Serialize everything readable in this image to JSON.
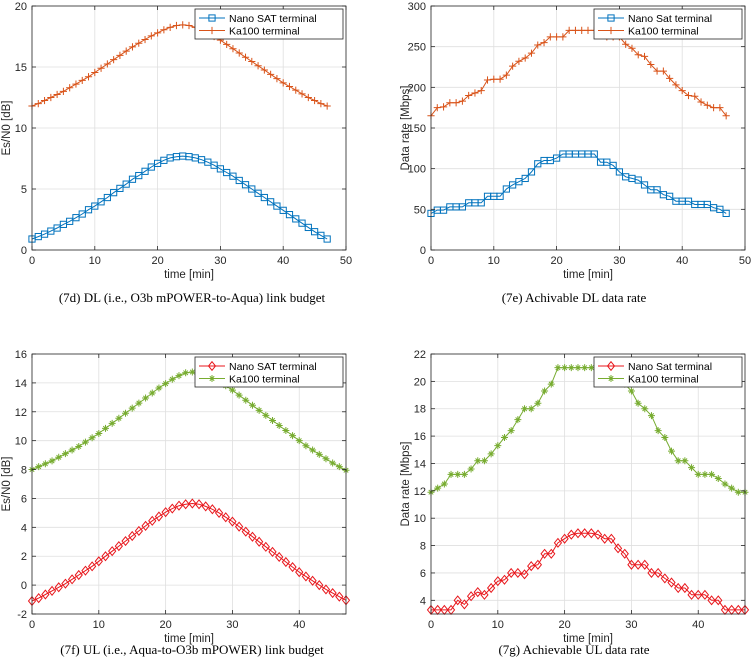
{
  "chart_data": [
    {
      "type": "line",
      "caption": "(7d) DL (i.e., O3b mPOWER-to-Aqua) link budget",
      "xlabel": "time [min]",
      "ylabel": "Es/N0 [dB]",
      "xlim": [
        0,
        50
      ],
      "ylim": [
        0,
        20
      ],
      "xticks": [
        0,
        10,
        20,
        30,
        40,
        50
      ],
      "yticks": [
        0,
        5,
        10,
        15,
        20
      ],
      "legend": "top-right",
      "x": [
        0,
        1,
        2,
        3,
        4,
        5,
        6,
        7,
        8,
        9,
        10,
        11,
        12,
        13,
        14,
        15,
        16,
        17,
        18,
        19,
        20,
        21,
        22,
        23,
        24,
        25,
        26,
        27,
        28,
        29,
        30,
        31,
        32,
        33,
        34,
        35,
        36,
        37,
        38,
        39,
        40,
        41,
        42,
        43,
        44,
        45,
        46,
        47
      ],
      "series": [
        {
          "name": "Nano SAT terminal",
          "color": "#0072BD",
          "marker": "square",
          "values": [
            0.9,
            1.1,
            1.3,
            1.55,
            1.8,
            2.1,
            2.35,
            2.65,
            2.95,
            3.3,
            3.6,
            3.95,
            4.3,
            4.7,
            5.05,
            5.4,
            5.8,
            6.1,
            6.45,
            6.8,
            7.1,
            7.35,
            7.55,
            7.65,
            7.7,
            7.65,
            7.55,
            7.4,
            7.2,
            6.95,
            6.65,
            6.35,
            6.05,
            5.7,
            5.35,
            5.0,
            4.65,
            4.3,
            3.95,
            3.6,
            3.25,
            2.9,
            2.55,
            2.2,
            1.85,
            1.5,
            1.2,
            0.9
          ]
        },
        {
          "name": "Ka100 terminal",
          "color": "#D95319",
          "marker": "plus",
          "values": [
            11.8,
            12.0,
            12.25,
            12.5,
            12.75,
            13.0,
            13.3,
            13.6,
            13.9,
            14.2,
            14.55,
            14.9,
            15.25,
            15.6,
            15.95,
            16.3,
            16.65,
            16.95,
            17.25,
            17.55,
            17.8,
            18.05,
            18.25,
            18.4,
            18.45,
            18.4,
            18.25,
            18.05,
            17.8,
            17.5,
            17.2,
            16.85,
            16.5,
            16.15,
            15.8,
            15.45,
            15.1,
            14.75,
            14.4,
            14.05,
            13.7,
            13.4,
            13.1,
            12.8,
            12.5,
            12.25,
            12.0,
            11.8
          ]
        }
      ]
    },
    {
      "type": "line",
      "caption": "(7e) Achivable DL data rate",
      "xlabel": "time [min]",
      "ylabel": "Data rate [Mbps]",
      "xlim": [
        0,
        50
      ],
      "ylim": [
        0,
        300
      ],
      "xticks": [
        0,
        10,
        20,
        30,
        40,
        50
      ],
      "yticks": [
        0,
        50,
        100,
        150,
        200,
        250,
        300
      ],
      "legend": "top-right",
      "x": [
        0,
        1,
        2,
        3,
        4,
        5,
        6,
        7,
        8,
        9,
        10,
        11,
        12,
        13,
        14,
        15,
        16,
        17,
        18,
        19,
        20,
        21,
        22,
        23,
        24,
        25,
        26,
        27,
        28,
        29,
        30,
        31,
        32,
        33,
        34,
        35,
        36,
        37,
        38,
        39,
        40,
        41,
        42,
        43,
        44,
        45,
        46,
        47
      ],
      "series": [
        {
          "name": "Nano Sat terminal",
          "color": "#0072BD",
          "marker": "square",
          "values": [
            45,
            49,
            49,
            53,
            53,
            53,
            58,
            58,
            58,
            66,
            66,
            66,
            75,
            80,
            84,
            88,
            96,
            106,
            110,
            110,
            113,
            118,
            118,
            118,
            118,
            118,
            118,
            108,
            108,
            104,
            96,
            90,
            88,
            86,
            80,
            74,
            74,
            68,
            66,
            60,
            60,
            60,
            56,
            56,
            56,
            52,
            50,
            45
          ]
        },
        {
          "name": "Ka100 terminal",
          "color": "#D95319",
          "marker": "plus",
          "values": [
            165,
            175,
            176,
            181,
            181,
            183,
            190,
            193,
            196,
            209,
            210,
            210,
            215,
            226,
            232,
            236,
            242,
            252,
            255,
            262,
            262,
            262,
            270,
            270,
            270,
            270,
            270,
            270,
            262,
            262,
            262,
            253,
            248,
            240,
            238,
            228,
            220,
            220,
            211,
            203,
            196,
            190,
            189,
            182,
            178,
            175,
            175,
            165
          ]
        }
      ]
    },
    {
      "type": "line",
      "caption": "(7f) UL (i.e., Aqua-to-O3b mPOWER) link budget",
      "xlabel": "time [min]",
      "ylabel": "Es/N0 [dB]",
      "xlim": [
        0,
        47
      ],
      "ylim": [
        -2,
        16
      ],
      "xticks": [
        0,
        10,
        20,
        30,
        40
      ],
      "yticks": [
        -2,
        0,
        2,
        4,
        6,
        8,
        10,
        12,
        14,
        16
      ],
      "legend": "top-right",
      "x": [
        0,
        1,
        2,
        3,
        4,
        5,
        6,
        7,
        8,
        9,
        10,
        11,
        12,
        13,
        14,
        15,
        16,
        17,
        18,
        19,
        20,
        21,
        22,
        23,
        24,
        25,
        26,
        27,
        28,
        29,
        30,
        31,
        32,
        33,
        34,
        35,
        36,
        37,
        38,
        39,
        40,
        41,
        42,
        43,
        44,
        45,
        46,
        47
      ],
      "series": [
        {
          "name": "Nano SAT terminal",
          "color": "#E8171C",
          "marker": "diamond",
          "values": [
            -1.1,
            -0.9,
            -0.65,
            -0.4,
            -0.15,
            0.1,
            0.4,
            0.7,
            1.0,
            1.3,
            1.65,
            2.0,
            2.35,
            2.7,
            3.05,
            3.4,
            3.75,
            4.1,
            4.45,
            4.75,
            5.05,
            5.3,
            5.5,
            5.6,
            5.65,
            5.6,
            5.45,
            5.25,
            5.0,
            4.7,
            4.4,
            4.05,
            3.7,
            3.35,
            3.0,
            2.65,
            2.3,
            1.95,
            1.6,
            1.25,
            0.9,
            0.6,
            0.3,
            0.0,
            -0.3,
            -0.55,
            -0.8,
            -1.05
          ]
        },
        {
          "name": "Ka100 terminal",
          "color": "#77AC30",
          "marker": "asterisk",
          "values": [
            8.0,
            8.2,
            8.4,
            8.6,
            8.85,
            9.1,
            9.35,
            9.6,
            9.9,
            10.2,
            10.5,
            10.85,
            11.2,
            11.55,
            11.9,
            12.25,
            12.6,
            12.95,
            13.3,
            13.65,
            13.95,
            14.25,
            14.5,
            14.7,
            14.75,
            14.7,
            14.55,
            14.35,
            14.1,
            13.8,
            13.5,
            13.15,
            12.8,
            12.45,
            12.1,
            11.75,
            11.4,
            11.05,
            10.7,
            10.35,
            10.0,
            9.65,
            9.35,
            9.05,
            8.75,
            8.45,
            8.2,
            7.95
          ]
        }
      ]
    },
    {
      "type": "line",
      "caption": "(7g) Achievable UL data rate",
      "xlabel": "time [min]",
      "ylabel": "Data rate [Mbps]",
      "xlim": [
        0,
        47
      ],
      "ylim": [
        3,
        22
      ],
      "xticks": [
        0,
        10,
        20,
        30,
        40
      ],
      "yticks": [
        4,
        6,
        8,
        10,
        12,
        14,
        16,
        18,
        20,
        22
      ],
      "legend": "top-right",
      "x": [
        0,
        1,
        2,
        3,
        4,
        5,
        6,
        7,
        8,
        9,
        10,
        11,
        12,
        13,
        14,
        15,
        16,
        17,
        18,
        19,
        20,
        21,
        22,
        23,
        24,
        25,
        26,
        27,
        28,
        29,
        30,
        31,
        32,
        33,
        34,
        35,
        36,
        37,
        38,
        39,
        40,
        41,
        42,
        43,
        44,
        45,
        46,
        47
      ],
      "series": [
        {
          "name": "Nano Sat terminal",
          "color": "#E8171C",
          "marker": "diamond",
          "values": [
            3.3,
            3.3,
            3.3,
            3.3,
            4.0,
            3.7,
            4.3,
            4.6,
            4.4,
            4.9,
            5.4,
            5.5,
            6.0,
            6.0,
            5.9,
            6.5,
            6.6,
            7.4,
            7.4,
            8.2,
            8.5,
            8.8,
            8.9,
            8.9,
            8.9,
            8.8,
            8.5,
            8.5,
            7.8,
            7.4,
            6.6,
            6.6,
            6.6,
            6.0,
            6.0,
            5.6,
            5.3,
            4.9,
            4.9,
            4.4,
            4.4,
            4.4,
            4.0,
            4.0,
            3.3,
            3.3,
            3.3,
            3.3
          ]
        },
        {
          "name": "Ka100 terminal",
          "color": "#77AC30",
          "marker": "asterisk",
          "values": [
            11.9,
            12.2,
            12.5,
            13.2,
            13.2,
            13.2,
            13.6,
            14.2,
            14.2,
            14.7,
            15.3,
            15.9,
            16.4,
            17.2,
            18.0,
            18.0,
            18.4,
            19.3,
            19.8,
            21.0,
            21.0,
            21.0,
            21.0,
            21.0,
            21.0,
            21.0,
            21.0,
            21.0,
            21.0,
            19.8,
            19.3,
            18.4,
            18.0,
            17.5,
            16.4,
            15.9,
            14.9,
            14.2,
            14.2,
            13.7,
            13.2,
            13.2,
            13.2,
            12.9,
            12.5,
            12.2,
            11.9,
            11.9
          ]
        }
      ]
    }
  ]
}
